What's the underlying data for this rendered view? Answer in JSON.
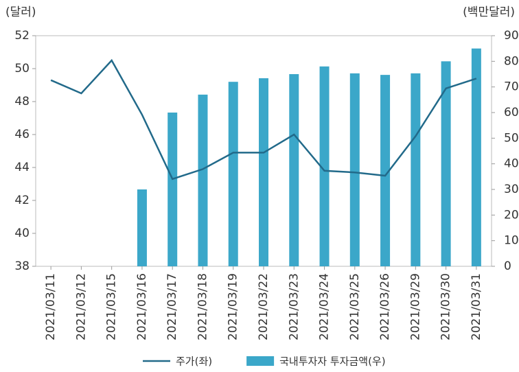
{
  "chart_data": {
    "type": "bar-line",
    "ylabel": "(달러)",
    "y2label": "(백만달러)",
    "categories": [
      "2021/03/11",
      "2021/03/12",
      "2021/03/15",
      "2021/03/16",
      "2021/03/17",
      "2021/03/18",
      "2021/03/19",
      "2021/03/22",
      "2021/03/23",
      "2021/03/24",
      "2021/03/25",
      "2021/03/26",
      "2021/03/29",
      "2021/03/30",
      "2021/03/31"
    ],
    "series": [
      {
        "name": "주가(좌)",
        "type": "line",
        "color": "#226a8a",
        "axis": "y",
        "values": [
          49.3,
          48.5,
          50.5,
          47.2,
          43.3,
          43.9,
          44.9,
          44.9,
          46.0,
          43.8,
          43.7,
          43.5,
          45.9,
          48.8,
          49.4
        ]
      },
      {
        "name": "국내투자자 투자금액(우)",
        "type": "bar",
        "color": "#3ba7c9",
        "axis": "y2",
        "values": [
          null,
          null,
          null,
          30,
          60,
          67,
          72,
          73.4,
          75,
          78,
          75.3,
          74.7,
          75.3,
          80,
          85
        ]
      }
    ],
    "ylim": [
      38,
      52
    ],
    "yticks": [
      38,
      40,
      42,
      44,
      46,
      48,
      50,
      52
    ],
    "y2lim": [
      0,
      90
    ],
    "y2ticks": [
      0,
      10,
      20,
      30,
      40,
      50,
      60,
      70,
      80,
      90
    ]
  }
}
